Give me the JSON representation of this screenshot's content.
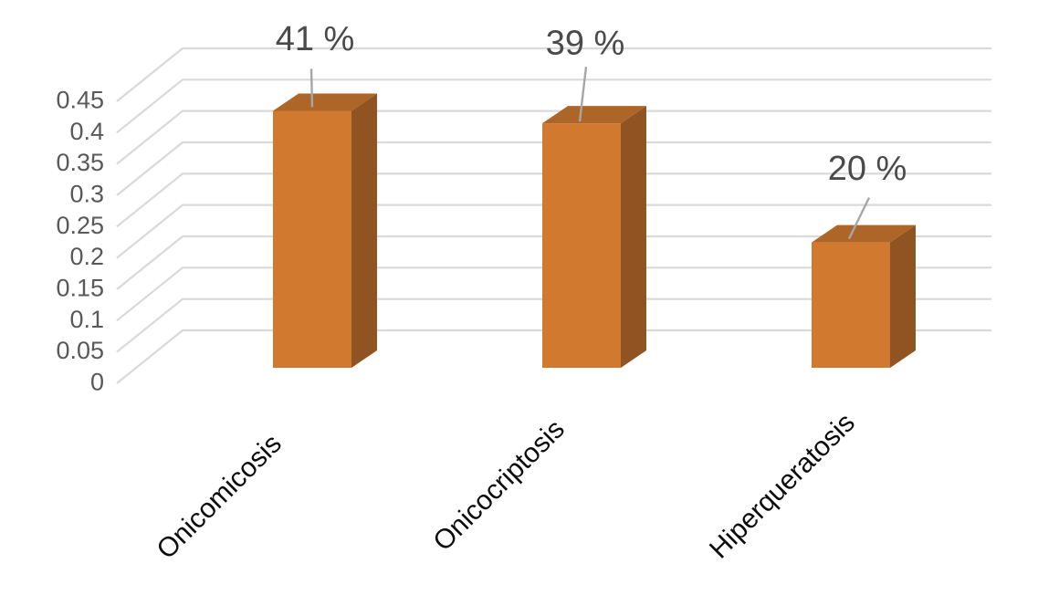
{
  "chart_data": {
    "type": "bar",
    "variant": "3d-column",
    "title": "",
    "xlabel": "",
    "ylabel": "",
    "categories": [
      "Onicomicosis",
      "Onicocriptosis",
      "Hiperqueratosis"
    ],
    "values": [
      0.41,
      0.39,
      0.2
    ],
    "data_labels": [
      "41 %",
      "39 %",
      "20 %"
    ],
    "yticks": [
      0,
      0.05,
      0.1,
      0.15,
      0.2,
      0.25,
      0.3,
      0.35,
      0.4,
      0.45
    ],
    "ytick_labels": [
      "0",
      "0.05",
      "0.1",
      "0.15",
      "0.2",
      "0.25",
      "0.3",
      "0.35",
      "0.4",
      "0.45"
    ],
    "ylim": [
      0,
      0.45
    ],
    "grid": true,
    "legend": null,
    "category_label_rotation_deg": 45,
    "colors": {
      "bar_front": "#D0792F",
      "bar_top": "#AE6528",
      "bar_side": "#8F5421",
      "gridline": "#D9D9D9",
      "leader_line": "#A6A6A6",
      "ytick_text": "#595959",
      "data_label_text": "#4A4A4A",
      "category_text": "#0D0D0D",
      "background": "#FFFFFF"
    }
  }
}
